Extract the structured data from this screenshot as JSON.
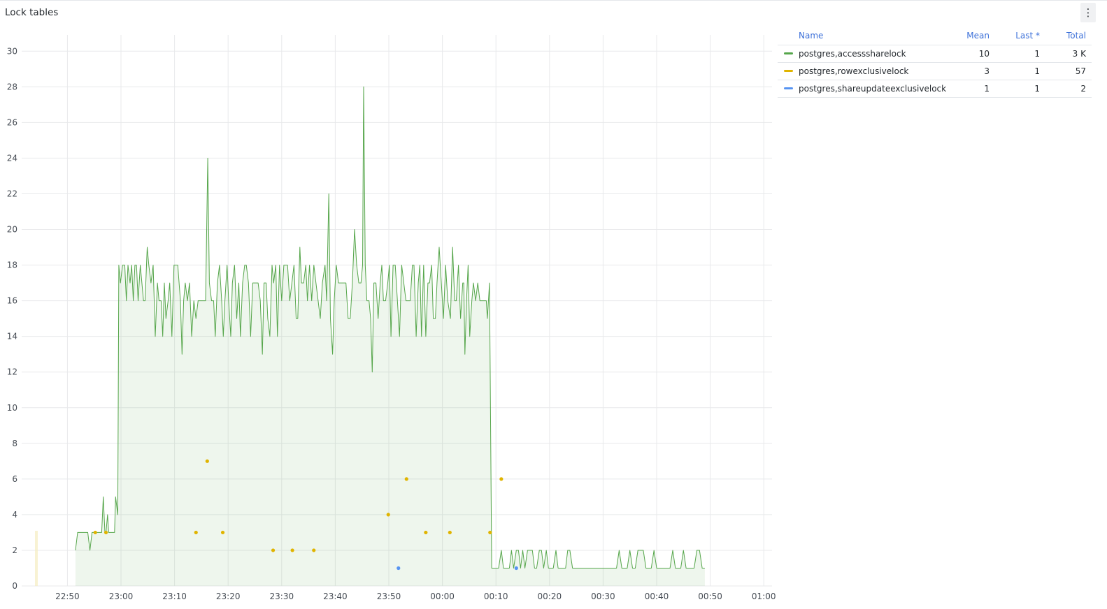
{
  "panel": {
    "title": "Lock tables",
    "menu_icon": "kebab-menu-icon"
  },
  "legend": {
    "headers": {
      "name": "Name",
      "mean": "Mean",
      "last": "Last *",
      "total": "Total"
    },
    "rows": [
      {
        "name": "postgres,accesssharelock",
        "color": "#56a64b",
        "mean": "10",
        "last": "1",
        "total": "3 K"
      },
      {
        "name": "postgres,rowexclusivelock",
        "color": "#e0b400",
        "mean": "3",
        "last": "1",
        "total": "57"
      },
      {
        "name": "postgres,shareupdateexclusivelock",
        "color": "#5794f2",
        "mean": "1",
        "last": "1",
        "total": "2"
      }
    ]
  },
  "chart_data": {
    "type": "line",
    "ylim": [
      0,
      30
    ],
    "y_ticks": [
      "0",
      "2",
      "4",
      "6",
      "8",
      "10",
      "12",
      "14",
      "16",
      "18",
      "20",
      "22",
      "24",
      "26",
      "28",
      "30"
    ],
    "x_ticks": [
      "22:50",
      "23:00",
      "23:10",
      "23:20",
      "23:30",
      "23:40",
      "23:50",
      "00:00",
      "00:10",
      "00:20",
      "00:30",
      "00:40",
      "00:50",
      "01:00"
    ],
    "x_range_minutes": [
      -8.5,
      1.5
    ],
    "grid": true,
    "series": [
      {
        "name": "postgres,accesssharelock",
        "color": "#56a64b",
        "fill": true,
        "points": [
          [
            -8.5,
            2
          ],
          [
            -8.1,
            3
          ],
          [
            -7.0,
            3
          ],
          [
            -6.2,
            3
          ],
          [
            -5.8,
            2
          ],
          [
            -5.4,
            3
          ],
          [
            -4.2,
            3
          ],
          [
            -3.6,
            3
          ],
          [
            -3.3,
            5
          ],
          [
            -3.0,
            3
          ],
          [
            -2.8,
            3
          ],
          [
            -2.5,
            4
          ],
          [
            -2.3,
            3
          ],
          [
            -1.5,
            3
          ],
          [
            -1.2,
            3
          ],
          [
            -1.0,
            5
          ],
          [
            -0.6,
            4
          ],
          [
            -0.4,
            18
          ],
          [
            -0.1,
            17
          ],
          [
            0.3,
            18
          ],
          [
            0.7,
            18
          ],
          [
            1.0,
            16
          ],
          [
            1.3,
            18
          ],
          [
            1.7,
            17
          ],
          [
            2.0,
            18
          ],
          [
            2.3,
            16
          ],
          [
            2.6,
            18
          ],
          [
            2.9,
            18
          ],
          [
            3.2,
            16
          ],
          [
            3.6,
            18
          ],
          [
            3.9,
            17
          ],
          [
            4.2,
            16
          ],
          [
            4.5,
            16
          ],
          [
            4.9,
            19
          ],
          [
            5.2,
            18
          ],
          [
            5.6,
            17
          ],
          [
            6.0,
            18
          ],
          [
            6.4,
            14
          ],
          [
            6.8,
            17
          ],
          [
            7.1,
            16
          ],
          [
            7.5,
            16
          ],
          [
            7.8,
            14
          ],
          [
            8.1,
            17
          ],
          [
            8.4,
            15
          ],
          [
            8.8,
            16
          ],
          [
            9.1,
            17
          ],
          [
            9.5,
            14
          ],
          [
            9.9,
            18
          ],
          [
            10.2,
            18
          ],
          [
            10.6,
            18
          ],
          [
            11.1,
            16
          ],
          [
            11.4,
            13
          ],
          [
            11.7,
            16
          ],
          [
            12.0,
            17
          ],
          [
            12.4,
            16
          ],
          [
            12.8,
            17
          ],
          [
            13.2,
            14
          ],
          [
            13.6,
            16
          ],
          [
            14.0,
            15
          ],
          [
            14.4,
            16
          ],
          [
            14.7,
            16
          ],
          [
            15.0,
            16
          ],
          [
            15.3,
            16
          ],
          [
            15.5,
            16
          ],
          [
            15.8,
            16
          ],
          [
            16.2,
            24
          ],
          [
            16.5,
            17
          ],
          [
            16.9,
            16
          ],
          [
            17.3,
            16
          ],
          [
            17.6,
            14
          ],
          [
            18.0,
            17
          ],
          [
            18.4,
            18
          ],
          [
            18.8,
            16
          ],
          [
            19.1,
            14
          ],
          [
            19.4,
            16
          ],
          [
            19.8,
            18
          ],
          [
            20.1,
            16
          ],
          [
            20.5,
            14
          ],
          [
            20.8,
            17
          ],
          [
            21.2,
            18
          ],
          [
            21.6,
            15
          ],
          [
            22.0,
            17
          ],
          [
            22.3,
            14
          ],
          [
            22.7,
            17
          ],
          [
            23.1,
            18
          ],
          [
            23.4,
            18
          ],
          [
            23.8,
            17
          ],
          [
            24.2,
            14
          ],
          [
            24.6,
            17
          ],
          [
            25.0,
            17
          ],
          [
            25.3,
            17
          ],
          [
            25.6,
            17
          ],
          [
            26.0,
            16
          ],
          [
            26.4,
            13
          ],
          [
            26.7,
            17
          ],
          [
            27.1,
            17
          ],
          [
            27.4,
            15
          ],
          [
            27.8,
            14
          ],
          [
            28.2,
            18
          ],
          [
            28.5,
            17
          ],
          [
            28.9,
            18
          ],
          [
            29.2,
            14
          ],
          [
            29.6,
            18
          ],
          [
            30.0,
            16
          ],
          [
            30.4,
            18
          ],
          [
            30.8,
            18
          ],
          [
            31.1,
            18
          ],
          [
            31.5,
            16
          ],
          [
            31.9,
            17
          ],
          [
            32.3,
            18
          ],
          [
            32.7,
            15
          ],
          [
            33.0,
            15
          ],
          [
            33.4,
            19
          ],
          [
            33.7,
            17
          ],
          [
            34.1,
            17
          ],
          [
            34.5,
            18
          ],
          [
            34.8,
            16
          ],
          [
            35.2,
            18
          ],
          [
            35.6,
            16
          ],
          [
            36.0,
            18
          ],
          [
            36.4,
            17
          ],
          [
            36.8,
            16
          ],
          [
            37.2,
            15
          ],
          [
            37.6,
            17
          ],
          [
            38.1,
            18
          ],
          [
            38.4,
            16
          ],
          [
            38.8,
            22
          ],
          [
            39.1,
            15
          ],
          [
            39.5,
            13
          ],
          [
            39.8,
            16
          ],
          [
            40.2,
            18
          ],
          [
            40.6,
            17
          ],
          [
            40.9,
            17
          ],
          [
            41.2,
            17
          ],
          [
            41.6,
            17
          ],
          [
            42.0,
            17
          ],
          [
            42.4,
            15
          ],
          [
            42.8,
            15
          ],
          [
            43.2,
            17
          ],
          [
            43.6,
            20
          ],
          [
            44.0,
            18
          ],
          [
            44.4,
            17
          ],
          [
            44.8,
            17
          ],
          [
            45.1,
            18
          ],
          [
            45.3,
            28
          ],
          [
            45.6,
            18
          ],
          [
            45.9,
            16
          ],
          [
            46.3,
            16
          ],
          [
            46.6,
            15
          ],
          [
            46.9,
            12
          ],
          [
            47.2,
            17
          ],
          [
            47.6,
            17
          ],
          [
            48.0,
            15
          ],
          [
            48.4,
            17
          ],
          [
            48.7,
            18
          ],
          [
            49.0,
            16
          ],
          [
            49.4,
            16
          ],
          [
            49.8,
            17
          ],
          [
            50.1,
            18
          ],
          [
            50.4,
            14
          ],
          [
            50.8,
            18
          ],
          [
            51.2,
            18
          ],
          [
            51.6,
            16
          ],
          [
            52.0,
            14
          ],
          [
            52.4,
            18
          ],
          [
            52.8,
            17
          ],
          [
            53.2,
            16
          ],
          [
            53.6,
            16
          ],
          [
            54.0,
            16
          ],
          [
            54.4,
            18
          ],
          [
            54.7,
            18
          ],
          [
            55.1,
            14
          ],
          [
            55.5,
            17
          ],
          [
            55.8,
            18
          ],
          [
            56.1,
            14
          ],
          [
            56.5,
            18
          ],
          [
            56.9,
            14
          ],
          [
            57.3,
            17
          ],
          [
            57.6,
            17
          ],
          [
            58.0,
            18
          ],
          [
            58.3,
            15
          ],
          [
            58.7,
            15
          ],
          [
            59.0,
            17
          ],
          [
            59.4,
            19
          ],
          [
            59.8,
            17
          ],
          [
            60.2,
            15
          ],
          [
            60.6,
            18
          ],
          [
            61.0,
            16
          ],
          [
            61.5,
            15
          ],
          [
            61.9,
            19
          ],
          [
            62.3,
            16
          ],
          [
            62.6,
            16
          ],
          [
            63.0,
            18
          ],
          [
            63.4,
            15
          ],
          [
            63.8,
            17
          ],
          [
            64.0,
            17
          ],
          [
            64.2,
            13
          ],
          [
            64.5,
            16
          ],
          [
            64.8,
            18
          ],
          [
            65.1,
            14
          ],
          [
            65.5,
            16
          ],
          [
            65.8,
            17
          ],
          [
            66.2,
            16
          ],
          [
            66.6,
            17
          ],
          [
            67.0,
            16
          ],
          [
            67.4,
            16
          ],
          [
            67.8,
            16
          ],
          [
            68.2,
            16
          ],
          [
            68.4,
            15
          ],
          [
            68.8,
            17
          ],
          [
            69.2,
            1
          ],
          [
            70.0,
            1
          ],
          [
            70.5,
            1
          ],
          [
            71.0,
            2
          ],
          [
            71.4,
            1
          ],
          [
            72.0,
            1
          ],
          [
            72.5,
            1
          ],
          [
            72.9,
            2
          ],
          [
            73.3,
            1
          ],
          [
            73.8,
            2
          ],
          [
            74.2,
            2
          ],
          [
            74.6,
            1
          ],
          [
            75.0,
            2
          ],
          [
            75.4,
            1
          ],
          [
            75.9,
            2
          ],
          [
            76.3,
            2
          ],
          [
            76.8,
            2
          ],
          [
            77.2,
            1
          ],
          [
            77.6,
            1
          ],
          [
            78.1,
            2
          ],
          [
            78.5,
            2
          ],
          [
            78.9,
            1
          ],
          [
            79.4,
            2
          ],
          [
            79.8,
            1
          ],
          [
            80.3,
            1
          ],
          [
            80.7,
            1
          ],
          [
            81.2,
            2
          ],
          [
            81.6,
            1
          ],
          [
            82.1,
            1
          ],
          [
            82.5,
            1
          ],
          [
            83.0,
            1
          ],
          [
            83.4,
            2
          ],
          [
            83.8,
            2
          ],
          [
            84.3,
            1
          ],
          [
            85.0,
            1
          ],
          [
            86.0,
            1
          ],
          [
            87.0,
            1
          ],
          [
            88.0,
            1
          ],
          [
            89.0,
            1
          ],
          [
            90.0,
            1
          ],
          [
            91.0,
            1
          ],
          [
            92.5,
            1
          ],
          [
            93.0,
            2
          ],
          [
            93.5,
            1
          ],
          [
            94.5,
            1
          ],
          [
            95.0,
            2
          ],
          [
            95.5,
            1
          ],
          [
            96.0,
            1
          ],
          [
            96.5,
            2
          ],
          [
            97.5,
            2
          ],
          [
            98.0,
            1
          ],
          [
            98.5,
            1
          ],
          [
            99.0,
            1
          ],
          [
            99.5,
            2
          ],
          [
            100.0,
            1
          ],
          [
            101.0,
            1
          ],
          [
            101.5,
            1
          ],
          [
            102.0,
            1
          ],
          [
            102.5,
            1
          ],
          [
            103.0,
            2
          ],
          [
            103.5,
            1
          ],
          [
            104.5,
            1
          ],
          [
            105.0,
            2
          ],
          [
            105.5,
            1
          ],
          [
            106.0,
            1
          ],
          [
            106.5,
            1
          ],
          [
            107.0,
            1
          ],
          [
            107.5,
            2
          ],
          [
            108.0,
            2
          ],
          [
            108.5,
            1
          ],
          [
            109.0,
            1
          ]
        ]
      },
      {
        "name": "postgres,rowexclusivelock",
        "color": "#e0b400",
        "fill": false,
        "points": [
          [
            -4.8,
            3
          ],
          [
            -2.8,
            3
          ],
          [
            14.0,
            3
          ],
          [
            16.1,
            7
          ],
          [
            19.0,
            3
          ],
          [
            28.4,
            2
          ],
          [
            32.0,
            2
          ],
          [
            36.0,
            2
          ],
          [
            49.9,
            4
          ],
          [
            53.3,
            6
          ],
          [
            56.9,
            3
          ],
          [
            61.4,
            3
          ],
          [
            68.9,
            3
          ],
          [
            71.0,
            6
          ]
        ]
      },
      {
        "name": "postgres,shareupdateexclusivelock",
        "color": "#5794f2",
        "fill": false,
        "points": [
          [
            51.8,
            1
          ],
          [
            73.8,
            1
          ]
        ]
      }
    ]
  }
}
